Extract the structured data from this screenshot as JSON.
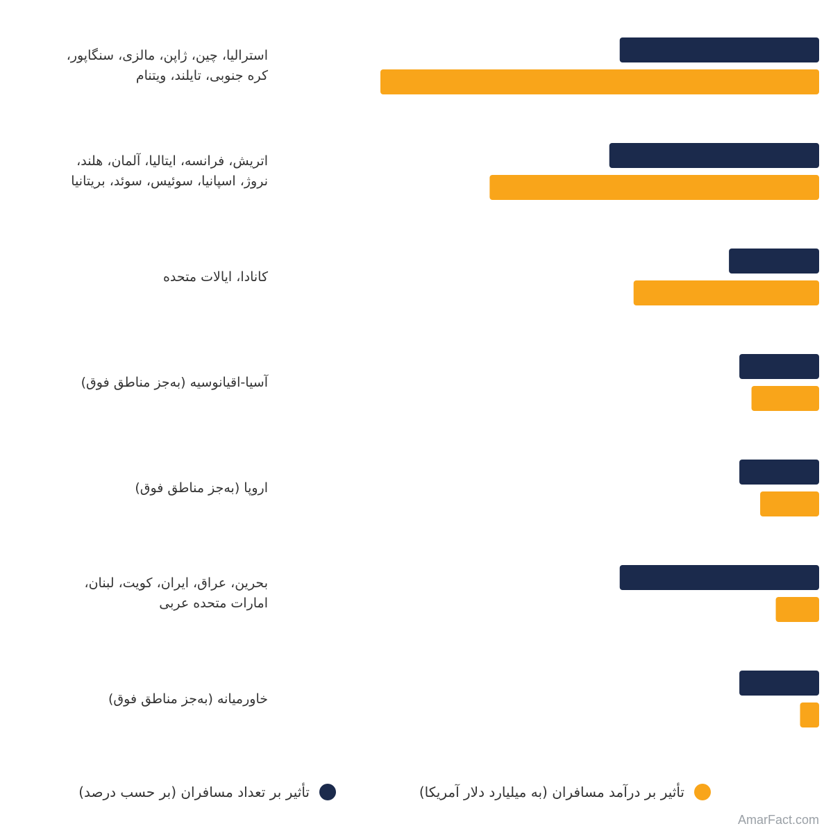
{
  "colors": {
    "travelers": "#1b2a4c",
    "revenue": "#f9a51a"
  },
  "chart_data": {
    "type": "bar",
    "orientation": "horizontal",
    "categories": [
      "استرالیا، چین، ژاپن، مالزی، سنگاپور، کره جنوبی، تایلند، ویتنام",
      "اتریش، فرانسه، ایتالیا، آلمان، هلند، نروژ، اسپانیا، سوئیس، سوئد، بریتانیا",
      "کانادا، ایالات متحده",
      "آسیا-اقیانوسیه (به‌جز مناطق فوق)",
      "اروپا (به‌جز مناطق فوق)",
      "بحرین، عراق، ایران، کویت، لبنان، امارات متحده عربی",
      "خاورمیانه (به‌جز مناطق فوق)"
    ],
    "category_lines": [
      [
        "استرالیا، چین، ژاپن، مالزی، سنگاپور،",
        "کره جنوبی، تایلند، ویتنام"
      ],
      [
        "اتریش، فرانسه، ایتالیا، آلمان، هلند،",
        "نروژ، اسپانیا، سوئیس، سوئد، بریتانیا"
      ],
      [
        "کانادا، ایالات متحده"
      ],
      [
        "آسیا-اقیانوسیه (به‌جز مناطق فوق)"
      ],
      [
        "اروپا (به‌جز مناطق فوق)"
      ],
      [
        "بحرین، عراق، ایران، کویت، لبنان،",
        "امارات متحده عربی"
      ],
      [
        "خاورمیانه (به‌جز مناطق فوق)"
      ]
    ],
    "series": [
      {
        "name": "تأثیر بر تعداد مسافران (بر حسب درصد)",
        "color": "#1b2a4c",
        "values": [
          11.5,
          12.1,
          5.2,
          4.6,
          4.6,
          11.5,
          4.6
        ]
      },
      {
        "name": "تأثیر بر درآمد مسافران (به میلیارد دلار آمریکا)",
        "color": "#f9a51a",
        "values": [
          25.3,
          19.0,
          10.7,
          3.9,
          3.4,
          2.5,
          1.1
        ]
      }
    ],
    "bars_grow_from": "right",
    "xlim": [
      0,
      25.3
    ],
    "grid": false,
    "legend_position": "bottom"
  },
  "legend": {
    "travelers_label": "تأثیر بر تعداد مسافران (بر حسب درصد)",
    "revenue_label": "تأثیر بر درآمد مسافران (به میلیارد دلار آمریکا)"
  },
  "watermark": "AmarFact.com"
}
